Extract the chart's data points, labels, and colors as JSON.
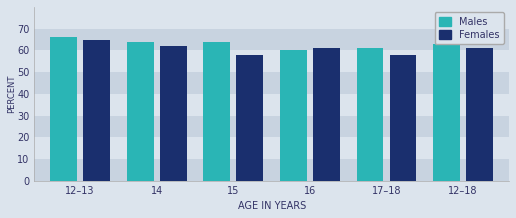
{
  "categories": [
    "12–13",
    "14",
    "15",
    "16",
    "17–18",
    "12–18"
  ],
  "males": [
    66,
    64,
    64,
    60,
    61,
    63
  ],
  "females": [
    65,
    62,
    58,
    61,
    58,
    61
  ],
  "males_color": "#2ab5b5",
  "females_color": "#1a2f6e",
  "ylabel": "PERCENT",
  "xlabel": "AGE IN YEARS",
  "ylim": [
    0,
    80
  ],
  "yticks": [
    0,
    10,
    20,
    30,
    40,
    50,
    60,
    70
  ],
  "legend_labels": [
    "Males",
    "Females"
  ],
  "bg_color": "#dce4ed",
  "plot_bg_color": "#dce4ed",
  "band_colors": [
    "#c8d3e0",
    "#dce4ed"
  ],
  "bar_width": 0.35,
  "bar_gap": 0.08
}
